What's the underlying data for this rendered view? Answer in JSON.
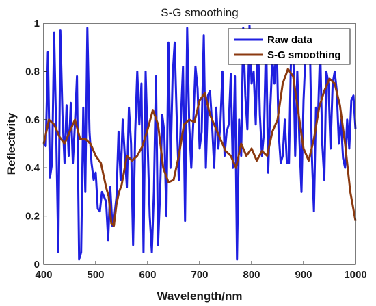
{
  "chart_data": {
    "type": "line",
    "title": "S-G smoothing",
    "xlabel": "Wavelength/nm",
    "ylabel": "Reflectivity",
    "xlim": [
      400,
      1000
    ],
    "ylim": [
      0,
      1
    ],
    "xticks": [
      400,
      500,
      600,
      700,
      800,
      900,
      1000
    ],
    "yticks": [
      0,
      0.2,
      0.4,
      0.6,
      0.8,
      1
    ],
    "xtick_labels": [
      "400",
      "500",
      "600",
      "700",
      "800",
      "900",
      "1000"
    ],
    "ytick_labels": [
      "0",
      "0.2",
      "0.4",
      "0.6",
      "0.8",
      "1"
    ],
    "grid": false,
    "legend_position": "top-right",
    "series": [
      {
        "name": "Raw data",
        "color": "#1f1fe0",
        "x": [
          400,
          404,
          408,
          412,
          416,
          420,
          424,
          428,
          432,
          436,
          440,
          444,
          448,
          452,
          456,
          460,
          464,
          468,
          472,
          476,
          480,
          484,
          488,
          492,
          496,
          500,
          504,
          508,
          512,
          516,
          520,
          524,
          528,
          532,
          536,
          540,
          544,
          548,
          552,
          556,
          560,
          564,
          568,
          572,
          576,
          580,
          584,
          588,
          592,
          596,
          600,
          604,
          608,
          612,
          616,
          620,
          624,
          628,
          632,
          636,
          640,
          644,
          648,
          652,
          656,
          660,
          664,
          668,
          672,
          676,
          680,
          684,
          688,
          692,
          696,
          700,
          704,
          708,
          712,
          716,
          720,
          724,
          728,
          732,
          736,
          740,
          744,
          748,
          752,
          756,
          760,
          764,
          768,
          772,
          776,
          780,
          784,
          788,
          792,
          796,
          800,
          804,
          808,
          812,
          816,
          820,
          824,
          828,
          832,
          836,
          840,
          844,
          848,
          852,
          856,
          860,
          864,
          868,
          872,
          876,
          880,
          884,
          888,
          892,
          896,
          900,
          904,
          908,
          912,
          916,
          920,
          924,
          928,
          932,
          936,
          940,
          944,
          948,
          952,
          956,
          960,
          964,
          968,
          972,
          976,
          980,
          984,
          988,
          992,
          996,
          1000
        ],
        "values": [
          0.5,
          0.49,
          0.88,
          0.36,
          0.42,
          0.96,
          0.55,
          0.05,
          0.97,
          0.62,
          0.42,
          0.66,
          0.45,
          0.67,
          0.42,
          0.58,
          0.78,
          0.02,
          0.05,
          0.65,
          0.3,
          0.98,
          0.55,
          0.42,
          0.35,
          0.38,
          0.23,
          0.22,
          0.3,
          0.28,
          0.26,
          0.1,
          0.32,
          0.16,
          0.2,
          0.28,
          0.55,
          0.35,
          0.6,
          0.45,
          0.32,
          0.65,
          0.5,
          0.08,
          0.55,
          0.8,
          0.58,
          0.75,
          0.05,
          0.8,
          0.5,
          0.2,
          0.05,
          0.3,
          0.78,
          0.08,
          0.3,
          0.62,
          0.55,
          0.2,
          0.92,
          0.4,
          0.78,
          0.92,
          0.6,
          0.35,
          0.6,
          0.82,
          0.18,
          0.98,
          0.58,
          0.4,
          0.6,
          0.82,
          0.73,
          0.48,
          0.55,
          0.95,
          0.4,
          0.7,
          0.72,
          0.58,
          0.4,
          0.65,
          0.48,
          0.58,
          0.8,
          0.45,
          0.55,
          0.58,
          0.79,
          0.4,
          0.78,
          0.02,
          0.6,
          0.45,
          0.98,
          0.7,
          0.56,
          0.99,
          0.75,
          0.8,
          0.58,
          0.97,
          0.62,
          0.45,
          0.55,
          0.95,
          0.38,
          0.65,
          0.85,
          0.75,
          0.95,
          0.55,
          0.42,
          0.45,
          0.6,
          0.42,
          0.42,
          0.88,
          0.92,
          0.45,
          0.8,
          0.52,
          0.3,
          0.68,
          0.88,
          0.86,
          0.95,
          0.45,
          0.22,
          0.65,
          0.62,
          0.9,
          0.5,
          0.35,
          0.8,
          0.75,
          0.48,
          0.75,
          0.8,
          0.72,
          0.5,
          0.6,
          0.44,
          0.4,
          0.6,
          0.48,
          0.68,
          0.7,
          0.56
        ],
        "stroke_width": 3
      },
      {
        "name": "S-G smoothing",
        "color": "#8b3a10",
        "x": [
          400,
          410,
          420,
          430,
          440,
          450,
          460,
          470,
          480,
          490,
          500,
          510,
          520,
          525,
          530,
          535,
          540,
          545,
          550,
          560,
          570,
          580,
          590,
          600,
          610,
          620,
          630,
          640,
          650,
          660,
          670,
          680,
          690,
          700,
          710,
          720,
          730,
          740,
          750,
          760,
          770,
          780,
          790,
          800,
          810,
          820,
          830,
          840,
          850,
          860,
          870,
          880,
          890,
          900,
          910,
          920,
          930,
          940,
          950,
          960,
          970,
          980,
          990,
          1000
        ],
        "values": [
          0.5,
          0.6,
          0.58,
          0.53,
          0.5,
          0.55,
          0.6,
          0.52,
          0.52,
          0.5,
          0.45,
          0.42,
          0.32,
          0.28,
          0.17,
          0.16,
          0.25,
          0.3,
          0.33,
          0.45,
          0.43,
          0.45,
          0.49,
          0.56,
          0.64,
          0.58,
          0.4,
          0.34,
          0.35,
          0.45,
          0.58,
          0.6,
          0.59,
          0.68,
          0.71,
          0.62,
          0.57,
          0.52,
          0.47,
          0.45,
          0.4,
          0.5,
          0.45,
          0.48,
          0.43,
          0.47,
          0.45,
          0.55,
          0.6,
          0.75,
          0.81,
          0.78,
          0.63,
          0.48,
          0.43,
          0.52,
          0.65,
          0.72,
          0.77,
          0.75,
          0.66,
          0.5,
          0.3,
          0.18
        ],
        "stroke_width": 3
      }
    ]
  }
}
